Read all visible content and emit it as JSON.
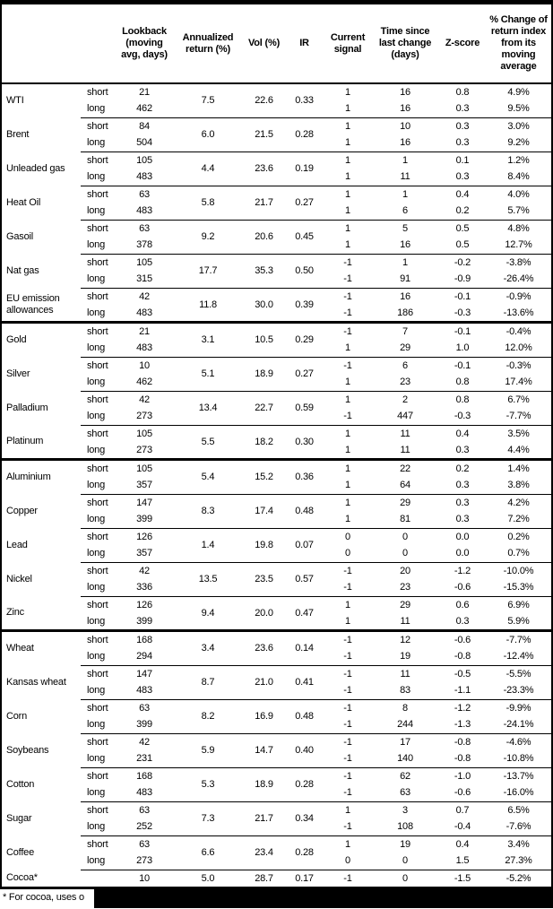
{
  "table": {
    "columns": [
      {
        "key": "name",
        "label": ""
      },
      {
        "key": "pos",
        "label": ""
      },
      {
        "key": "lookback",
        "label": "Lookback (moving avg, days)"
      },
      {
        "key": "annret",
        "label": "Annualized return (%)"
      },
      {
        "key": "vol",
        "label": "Vol (%)"
      },
      {
        "key": "ir",
        "label": "IR"
      },
      {
        "key": "signal",
        "label": "Current signal"
      },
      {
        "key": "time",
        "label": "Time since last change (days)"
      },
      {
        "key": "zscore",
        "label": "Z-score"
      },
      {
        "key": "change",
        "label": "% Change of return index from its moving average"
      }
    ],
    "sections": [
      {
        "commodities": [
          {
            "name": "WTI",
            "annualized_return": "7.5",
            "vol": "22.6",
            "ir": "0.33",
            "rows": [
              {
                "pos": "short",
                "lookback": "21",
                "signal": "1",
                "time_since": "16",
                "zscore": "0.8",
                "change": "4.9%"
              },
              {
                "pos": "long",
                "lookback": "462",
                "signal": "1",
                "time_since": "16",
                "zscore": "0.3",
                "change": "9.5%"
              }
            ]
          },
          {
            "name": "Brent",
            "annualized_return": "6.0",
            "vol": "21.5",
            "ir": "0.28",
            "rows": [
              {
                "pos": "short",
                "lookback": "84",
                "signal": "1",
                "time_since": "10",
                "zscore": "0.3",
                "change": "3.0%"
              },
              {
                "pos": "long",
                "lookback": "504",
                "signal": "1",
                "time_since": "16",
                "zscore": "0.3",
                "change": "9.2%"
              }
            ]
          },
          {
            "name": "Unleaded gas",
            "annualized_return": "4.4",
            "vol": "23.6",
            "ir": "0.19",
            "rows": [
              {
                "pos": "short",
                "lookback": "105",
                "signal": "1",
                "time_since": "1",
                "zscore": "0.1",
                "change": "1.2%"
              },
              {
                "pos": "long",
                "lookback": "483",
                "signal": "1",
                "time_since": "11",
                "zscore": "0.3",
                "change": "8.4%"
              }
            ]
          },
          {
            "name": "Heat Oil",
            "annualized_return": "5.8",
            "vol": "21.7",
            "ir": "0.27",
            "rows": [
              {
                "pos": "short",
                "lookback": "63",
                "signal": "1",
                "time_since": "1",
                "zscore": "0.4",
                "change": "4.0%"
              },
              {
                "pos": "long",
                "lookback": "483",
                "signal": "1",
                "time_since": "6",
                "zscore": "0.2",
                "change": "5.7%"
              }
            ]
          },
          {
            "name": "Gasoil",
            "annualized_return": "9.2",
            "vol": "20.6",
            "ir": "0.45",
            "rows": [
              {
                "pos": "short",
                "lookback": "63",
                "signal": "1",
                "time_since": "5",
                "zscore": "0.5",
                "change": "4.8%"
              },
              {
                "pos": "long",
                "lookback": "378",
                "signal": "1",
                "time_since": "16",
                "zscore": "0.5",
                "change": "12.7%"
              }
            ]
          },
          {
            "name": "Nat gas",
            "annualized_return": "17.7",
            "vol": "35.3",
            "ir": "0.50",
            "rows": [
              {
                "pos": "short",
                "lookback": "105",
                "signal": "-1",
                "time_since": "1",
                "zscore": "-0.2",
                "change": "-3.8%"
              },
              {
                "pos": "long",
                "lookback": "315",
                "signal": "-1",
                "time_since": "91",
                "zscore": "-0.9",
                "change": "-26.4%"
              }
            ]
          },
          {
            "name": "EU emission allowances",
            "annualized_return": "11.8",
            "vol": "30.0",
            "ir": "0.39",
            "rows": [
              {
                "pos": "short",
                "lookback": "42",
                "signal": "-1",
                "time_since": "16",
                "zscore": "-0.1",
                "change": "-0.9%"
              },
              {
                "pos": "long",
                "lookback": "483",
                "signal": "-1",
                "time_since": "186",
                "zscore": "-0.3",
                "change": "-13.6%"
              }
            ]
          }
        ]
      },
      {
        "commodities": [
          {
            "name": "Gold",
            "annualized_return": "3.1",
            "vol": "10.5",
            "ir": "0.29",
            "rows": [
              {
                "pos": "short",
                "lookback": "21",
                "signal": "-1",
                "time_since": "7",
                "zscore": "-0.1",
                "change": "-0.4%"
              },
              {
                "pos": "long",
                "lookback": "483",
                "signal": "1",
                "time_since": "29",
                "zscore": "1.0",
                "change": "12.0%"
              }
            ]
          },
          {
            "name": "Silver",
            "annualized_return": "5.1",
            "vol": "18.9",
            "ir": "0.27",
            "rows": [
              {
                "pos": "short",
                "lookback": "10",
                "signal": "-1",
                "time_since": "6",
                "zscore": "-0.1",
                "change": "-0.3%"
              },
              {
                "pos": "long",
                "lookback": "462",
                "signal": "1",
                "time_since": "23",
                "zscore": "0.8",
                "change": "17.4%"
              }
            ]
          },
          {
            "name": "Palladium",
            "annualized_return": "13.4",
            "vol": "22.7",
            "ir": "0.59",
            "rows": [
              {
                "pos": "short",
                "lookback": "42",
                "signal": "1",
                "time_since": "2",
                "zscore": "0.8",
                "change": "6.7%"
              },
              {
                "pos": "long",
                "lookback": "273",
                "signal": "-1",
                "time_since": "447",
                "zscore": "-0.3",
                "change": "-7.7%"
              }
            ]
          },
          {
            "name": "Platinum",
            "annualized_return": "5.5",
            "vol": "18.2",
            "ir": "0.30",
            "rows": [
              {
                "pos": "short",
                "lookback": "105",
                "signal": "1",
                "time_since": "11",
                "zscore": "0.4",
                "change": "3.5%"
              },
              {
                "pos": "long",
                "lookback": "273",
                "signal": "1",
                "time_since": "11",
                "zscore": "0.3",
                "change": "4.4%"
              }
            ]
          }
        ]
      },
      {
        "commodities": [
          {
            "name": "Aluminium",
            "annualized_return": "5.4",
            "vol": "15.2",
            "ir": "0.36",
            "rows": [
              {
                "pos": "short",
                "lookback": "105",
                "signal": "1",
                "time_since": "22",
                "zscore": "0.2",
                "change": "1.4%"
              },
              {
                "pos": "long",
                "lookback": "357",
                "signal": "1",
                "time_since": "64",
                "zscore": "0.3",
                "change": "3.8%"
              }
            ]
          },
          {
            "name": "Copper",
            "annualized_return": "8.3",
            "vol": "17.4",
            "ir": "0.48",
            "rows": [
              {
                "pos": "short",
                "lookback": "147",
                "signal": "1",
                "time_since": "29",
                "zscore": "0.3",
                "change": "4.2%"
              },
              {
                "pos": "long",
                "lookback": "399",
                "signal": "1",
                "time_since": "81",
                "zscore": "0.3",
                "change": "7.2%"
              }
            ]
          },
          {
            "name": "Lead",
            "annualized_return": "1.4",
            "vol": "19.8",
            "ir": "0.07",
            "rows": [
              {
                "pos": "short",
                "lookback": "126",
                "signal": "0",
                "time_since": "0",
                "zscore": "0.0",
                "change": "0.2%"
              },
              {
                "pos": "long",
                "lookback": "357",
                "signal": "0",
                "time_since": "0",
                "zscore": "0.0",
                "change": "0.7%"
              }
            ]
          },
          {
            "name": "Nickel",
            "annualized_return": "13.5",
            "vol": "23.5",
            "ir": "0.57",
            "rows": [
              {
                "pos": "short",
                "lookback": "42",
                "signal": "-1",
                "time_since": "20",
                "zscore": "-1.2",
                "change": "-10.0%"
              },
              {
                "pos": "long",
                "lookback": "336",
                "signal": "-1",
                "time_since": "23",
                "zscore": "-0.6",
                "change": "-15.3%"
              }
            ]
          },
          {
            "name": "Zinc",
            "annualized_return": "9.4",
            "vol": "20.0",
            "ir": "0.47",
            "rows": [
              {
                "pos": "short",
                "lookback": "126",
                "signal": "1",
                "time_since": "29",
                "zscore": "0.6",
                "change": "6.9%"
              },
              {
                "pos": "long",
                "lookback": "399",
                "signal": "1",
                "time_since": "11",
                "zscore": "0.3",
                "change": "5.9%"
              }
            ]
          }
        ]
      },
      {
        "commodities": [
          {
            "name": "Wheat",
            "annualized_return": "3.4",
            "vol": "23.6",
            "ir": "0.14",
            "rows": [
              {
                "pos": "short",
                "lookback": "168",
                "signal": "-1",
                "time_since": "12",
                "zscore": "-0.6",
                "change": "-7.7%"
              },
              {
                "pos": "long",
                "lookback": "294",
                "signal": "-1",
                "time_since": "19",
                "zscore": "-0.8",
                "change": "-12.4%"
              }
            ]
          },
          {
            "name": "Kansas wheat",
            "annualized_return": "8.7",
            "vol": "21.0",
            "ir": "0.41",
            "rows": [
              {
                "pos": "short",
                "lookback": "147",
                "signal": "-1",
                "time_since": "11",
                "zscore": "-0.5",
                "change": "-5.5%"
              },
              {
                "pos": "long",
                "lookback": "483",
                "signal": "-1",
                "time_since": "83",
                "zscore": "-1.1",
                "change": "-23.3%"
              }
            ]
          },
          {
            "name": "Corn",
            "annualized_return": "8.2",
            "vol": "16.9",
            "ir": "0.48",
            "rows": [
              {
                "pos": "short",
                "lookback": "63",
                "signal": "-1",
                "time_since": "8",
                "zscore": "-1.2",
                "change": "-9.9%"
              },
              {
                "pos": "long",
                "lookback": "399",
                "signal": "-1",
                "time_since": "244",
                "zscore": "-1.3",
                "change": "-24.1%"
              }
            ]
          },
          {
            "name": "Soybeans",
            "annualized_return": "5.9",
            "vol": "14.7",
            "ir": "0.40",
            "rows": [
              {
                "pos": "short",
                "lookback": "42",
                "signal": "-1",
                "time_since": "17",
                "zscore": "-0.8",
                "change": "-4.6%"
              },
              {
                "pos": "long",
                "lookback": "231",
                "signal": "-1",
                "time_since": "140",
                "zscore": "-0.8",
                "change": "-10.8%"
              }
            ]
          },
          {
            "name": "Cotton",
            "annualized_return": "5.3",
            "vol": "18.9",
            "ir": "0.28",
            "rows": [
              {
                "pos": "short",
                "lookback": "168",
                "signal": "-1",
                "time_since": "62",
                "zscore": "-1.0",
                "change": "-13.7%"
              },
              {
                "pos": "long",
                "lookback": "483",
                "signal": "-1",
                "time_since": "63",
                "zscore": "-0.6",
                "change": "-16.0%"
              }
            ]
          },
          {
            "name": "Sugar",
            "annualized_return": "7.3",
            "vol": "21.7",
            "ir": "0.34",
            "rows": [
              {
                "pos": "short",
                "lookback": "63",
                "signal": "1",
                "time_since": "3",
                "zscore": "0.7",
                "change": "6.5%"
              },
              {
                "pos": "long",
                "lookback": "252",
                "signal": "-1",
                "time_since": "108",
                "zscore": "-0.4",
                "change": "-7.6%"
              }
            ]
          },
          {
            "name": "Coffee",
            "annualized_return": "6.6",
            "vol": "23.4",
            "ir": "0.28",
            "rows": [
              {
                "pos": "short",
                "lookback": "63",
                "signal": "1",
                "time_since": "19",
                "zscore": "0.4",
                "change": "3.4%"
              },
              {
                "pos": "long",
                "lookback": "273",
                "signal": "0",
                "time_since": "0",
                "zscore": "1.5",
                "change": "27.3%"
              }
            ]
          },
          {
            "name": "Cocoa*",
            "annualized_return": "5.0",
            "vol": "28.7",
            "ir": "0.17",
            "rows": [
              {
                "pos": "",
                "lookback": "10",
                "signal": "-1",
                "time_since": "0",
                "zscore": "-1.5",
                "change": "-5.2%"
              }
            ]
          }
        ]
      }
    ]
  },
  "footnote": {
    "text": "* For cocoa, uses o"
  }
}
